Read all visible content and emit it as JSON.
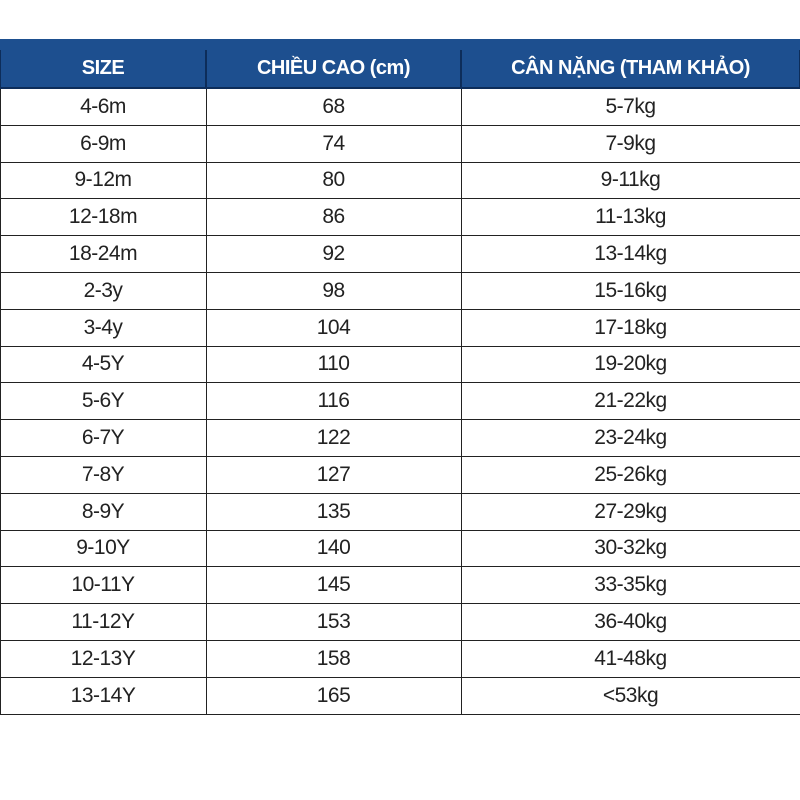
{
  "colors": {
    "header_bg": "#1d4f8f",
    "header_text": "#ffffff"
  },
  "headers": [
    "SIZE",
    "CHIỀU CAO (cm)",
    "CÂN NẶNG (THAM KHẢO)"
  ],
  "rows": [
    [
      "4-6m",
      "68",
      "5-7kg"
    ],
    [
      "6-9m",
      "74",
      "7-9kg"
    ],
    [
      "9-12m",
      "80",
      "9-11kg"
    ],
    [
      "12-18m",
      "86",
      "11-13kg"
    ],
    [
      "18-24m",
      "92",
      "13-14kg"
    ],
    [
      "2-3y",
      "98",
      "15-16kg"
    ],
    [
      "3-4y",
      "104",
      "17-18kg"
    ],
    [
      "4-5Y",
      "110",
      "19-20kg"
    ],
    [
      "5-6Y",
      "116",
      "21-22kg"
    ],
    [
      "6-7Y",
      "122",
      "23-24kg"
    ],
    [
      "7-8Y",
      "127",
      "25-26kg"
    ],
    [
      "8-9Y",
      "135",
      "27-29kg"
    ],
    [
      "9-10Y",
      "140",
      "30-32kg"
    ],
    [
      "10-11Y",
      "145",
      "33-35kg"
    ],
    [
      "11-12Y",
      "153",
      "36-40kg"
    ],
    [
      "12-13Y",
      "158",
      "41-48kg"
    ],
    [
      "13-14Y",
      "165",
      "<53kg"
    ]
  ]
}
